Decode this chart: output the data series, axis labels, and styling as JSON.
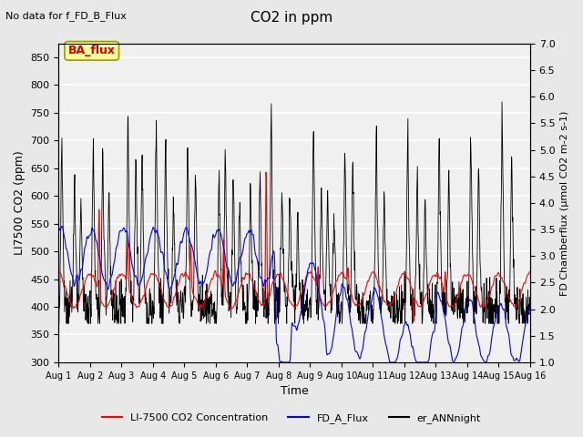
{
  "title": "CO2 in ppm",
  "top_left_text": "No data for f_FD_B_Flux",
  "xlabel": "Time",
  "ylabel_left": "LI7500 CO2 (ppm)",
  "ylabel_right": "FD Chamberflux (μmol CO2 m-2 s-1)",
  "ylim_left": [
    300,
    875
  ],
  "ylim_right": [
    1.0,
    7.0
  ],
  "yticks_left": [
    300,
    350,
    400,
    450,
    500,
    550,
    600,
    650,
    700,
    750,
    800,
    850
  ],
  "yticks_right": [
    1.0,
    1.5,
    2.0,
    2.5,
    3.0,
    3.5,
    4.0,
    4.5,
    5.0,
    5.5,
    6.0,
    6.5,
    7.0
  ],
  "xtick_labels": [
    "Aug 1",
    "Aug 2",
    "Aug 3",
    "Aug 4",
    "Aug 5",
    "Aug 6",
    "Aug 7",
    "Aug 8",
    "Aug 9",
    "Aug 10",
    "Aug 11",
    "Aug 12",
    "Aug 13",
    "Aug 14",
    "Aug 15",
    "Aug 16"
  ],
  "bg_color": "#e8e8e8",
  "plot_bg_color": "#f0f0f0",
  "line_red": "#ff0000",
  "line_blue": "#0000ff",
  "line_black": "#000000",
  "legend_entries": [
    "LI-7500 CO2 Concentration",
    "FD_A_Flux",
    "er_ANNnight"
  ],
  "ba_flux_box_color": "#ffff99",
  "ba_flux_edge_color": "#999900",
  "ba_flux_text_color": "#cc0000",
  "n_days": 15,
  "n_per_day": 96,
  "seed": 42
}
